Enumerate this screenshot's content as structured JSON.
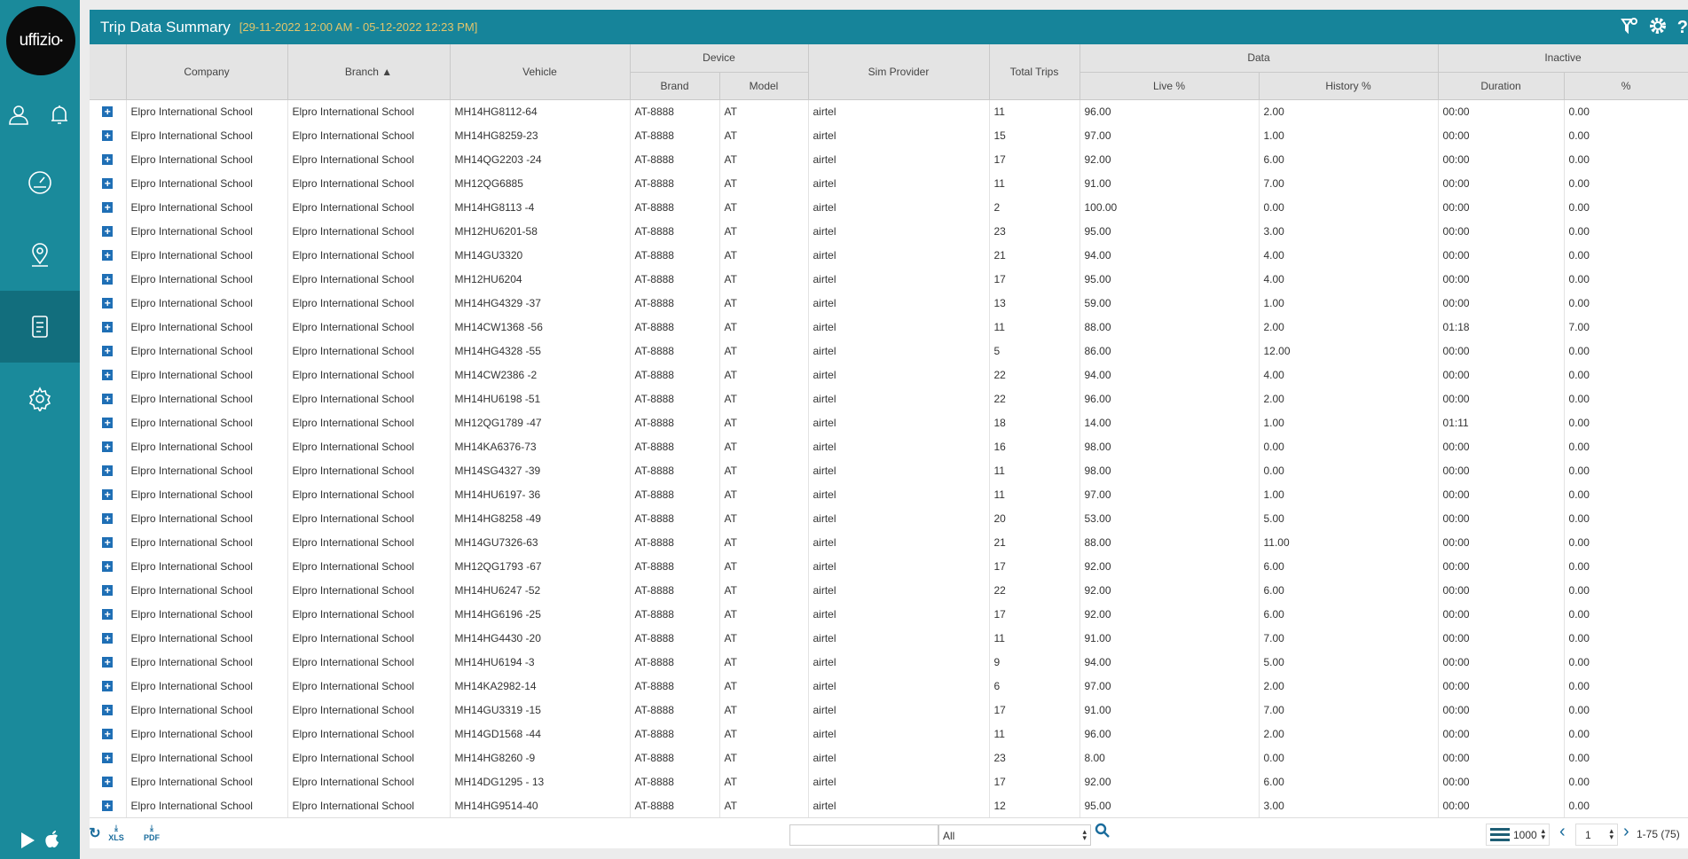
{
  "brand": {
    "logo_text": "uffizio"
  },
  "sidebar": {
    "items": [
      {
        "icon": "user-icon"
      },
      {
        "icon": "bell-icon"
      },
      {
        "icon": "dashboard-icon"
      },
      {
        "icon": "map-pin-icon"
      },
      {
        "icon": "report-icon",
        "active": true
      },
      {
        "icon": "settings-icon"
      },
      {
        "icon": "play-store-icon"
      },
      {
        "icon": "apple-icon"
      }
    ]
  },
  "header": {
    "title": "Trip Data Summary",
    "date_range": "[29-11-2022 12:00 AM - 05-12-2022 12:23 PM]",
    "icons": [
      "filter-icon",
      "gear-icon",
      "help-icon"
    ]
  },
  "table": {
    "groups": {
      "device": "Device",
      "data": "Data",
      "inactive": "Inactive"
    },
    "headers": {
      "company": "Company",
      "branch": "Branch ▲",
      "vehicle": "Vehicle",
      "brand": "Brand",
      "model": "Model",
      "sim": "Sim Provider",
      "trips": "Total Trips",
      "live": "Live %",
      "history": "History %",
      "duration": "Duration",
      "pct": "%"
    },
    "rows": [
      [
        "Elpro International School",
        "Elpro International School",
        "MH14HG8112-64",
        "AT-8888",
        "AT",
        "airtel",
        "11",
        "96.00",
        "2.00",
        "00:00",
        "0.00"
      ],
      [
        "Elpro International School",
        "Elpro International School",
        "MH14HG8259-23",
        "AT-8888",
        "AT",
        "airtel",
        "15",
        "97.00",
        "1.00",
        "00:00",
        "0.00"
      ],
      [
        "Elpro International School",
        "Elpro International School",
        "MH14QG2203 -24",
        "AT-8888",
        "AT",
        "airtel",
        "17",
        "92.00",
        "6.00",
        "00:00",
        "0.00"
      ],
      [
        "Elpro International School",
        "Elpro International School",
        "MH12QG6885",
        "AT-8888",
        "AT",
        "airtel",
        "11",
        "91.00",
        "7.00",
        "00:00",
        "0.00"
      ],
      [
        "Elpro International School",
        "Elpro International School",
        "MH14HG8113 -4",
        "AT-8888",
        "AT",
        "airtel",
        "2",
        "100.00",
        "0.00",
        "00:00",
        "0.00"
      ],
      [
        "Elpro International School",
        "Elpro International School",
        "MH12HU6201-58",
        "AT-8888",
        "AT",
        "airtel",
        "23",
        "95.00",
        "3.00",
        "00:00",
        "0.00"
      ],
      [
        "Elpro International School",
        "Elpro International School",
        "MH14GU3320",
        "AT-8888",
        "AT",
        "airtel",
        "21",
        "94.00",
        "4.00",
        "00:00",
        "0.00"
      ],
      [
        "Elpro International School",
        "Elpro International School",
        "MH12HU6204",
        "AT-8888",
        "AT",
        "airtel",
        "17",
        "95.00",
        "4.00",
        "00:00",
        "0.00"
      ],
      [
        "Elpro International School",
        "Elpro International School",
        "MH14HG4329 -37",
        "AT-8888",
        "AT",
        "airtel",
        "13",
        "59.00",
        "1.00",
        "00:00",
        "0.00"
      ],
      [
        "Elpro International School",
        "Elpro International School",
        "MH14CW1368 -56",
        "AT-8888",
        "AT",
        "airtel",
        "11",
        "88.00",
        "2.00",
        "01:18",
        "7.00"
      ],
      [
        "Elpro International School",
        "Elpro International School",
        "MH14HG4328 -55",
        "AT-8888",
        "AT",
        "airtel",
        "5",
        "86.00",
        "12.00",
        "00:00",
        "0.00"
      ],
      [
        "Elpro International School",
        "Elpro International School",
        "MH14CW2386 -2",
        "AT-8888",
        "AT",
        "airtel",
        "22",
        "94.00",
        "4.00",
        "00:00",
        "0.00"
      ],
      [
        "Elpro International School",
        "Elpro International School",
        "MH14HU6198 -51",
        "AT-8888",
        "AT",
        "airtel",
        "22",
        "96.00",
        "2.00",
        "00:00",
        "0.00"
      ],
      [
        "Elpro International School",
        "Elpro International School",
        "MH12QG1789 -47",
        "AT-8888",
        "AT",
        "airtel",
        "18",
        "14.00",
        "1.00",
        "01:11",
        "0.00"
      ],
      [
        "Elpro International School",
        "Elpro International School",
        "MH14KA6376-73",
        "AT-8888",
        "AT",
        "airtel",
        "16",
        "98.00",
        "0.00",
        "00:00",
        "0.00"
      ],
      [
        "Elpro International School",
        "Elpro International School",
        "MH14SG4327 -39",
        "AT-8888",
        "AT",
        "airtel",
        "11",
        "98.00",
        "0.00",
        "00:00",
        "0.00"
      ],
      [
        "Elpro International School",
        "Elpro International School",
        "MH14HU6197- 36",
        "AT-8888",
        "AT",
        "airtel",
        "11",
        "97.00",
        "1.00",
        "00:00",
        "0.00"
      ],
      [
        "Elpro International School",
        "Elpro International School",
        "MH14HG8258 -49",
        "AT-8888",
        "AT",
        "airtel",
        "20",
        "53.00",
        "5.00",
        "00:00",
        "0.00"
      ],
      [
        "Elpro International School",
        "Elpro International School",
        "MH14GU7326-63",
        "AT-8888",
        "AT",
        "airtel",
        "21",
        "88.00",
        "11.00",
        "00:00",
        "0.00"
      ],
      [
        "Elpro International School",
        "Elpro International School",
        "MH12QG1793 -67",
        "AT-8888",
        "AT",
        "airtel",
        "17",
        "92.00",
        "6.00",
        "00:00",
        "0.00"
      ],
      [
        "Elpro International School",
        "Elpro International School",
        "MH14HU6247 -52",
        "AT-8888",
        "AT",
        "airtel",
        "22",
        "92.00",
        "6.00",
        "00:00",
        "0.00"
      ],
      [
        "Elpro International School",
        "Elpro International School",
        "MH14HG6196 -25",
        "AT-8888",
        "AT",
        "airtel",
        "17",
        "92.00",
        "6.00",
        "00:00",
        "0.00"
      ],
      [
        "Elpro International School",
        "Elpro International School",
        "MH14HG4430 -20",
        "AT-8888",
        "AT",
        "airtel",
        "11",
        "91.00",
        "7.00",
        "00:00",
        "0.00"
      ],
      [
        "Elpro International School",
        "Elpro International School",
        "MH14HU6194 -3",
        "AT-8888",
        "AT",
        "airtel",
        "9",
        "94.00",
        "5.00",
        "00:00",
        "0.00"
      ],
      [
        "Elpro International School",
        "Elpro International School",
        "MH14KA2982-14",
        "AT-8888",
        "AT",
        "airtel",
        "6",
        "97.00",
        "2.00",
        "00:00",
        "0.00"
      ],
      [
        "Elpro International School",
        "Elpro International School",
        "MH14GU3319 -15",
        "AT-8888",
        "AT",
        "airtel",
        "17",
        "91.00",
        "7.00",
        "00:00",
        "0.00"
      ],
      [
        "Elpro International School",
        "Elpro International School",
        "MH14GD1568 -44",
        "AT-8888",
        "AT",
        "airtel",
        "11",
        "96.00",
        "2.00",
        "00:00",
        "0.00"
      ],
      [
        "Elpro International School",
        "Elpro International School",
        "MH14HG8260 -9",
        "AT-8888",
        "AT",
        "airtel",
        "23",
        "8.00",
        "0.00",
        "00:00",
        "0.00"
      ],
      [
        "Elpro International School",
        "Elpro International School",
        "MH14DG1295 - 13",
        "AT-8888",
        "AT",
        "airtel",
        "17",
        "92.00",
        "6.00",
        "00:00",
        "0.00"
      ],
      [
        "Elpro International School",
        "Elpro International School",
        "MH14HG9514-40",
        "AT-8888",
        "AT",
        "airtel",
        "12",
        "95.00",
        "3.00",
        "00:00",
        "0.00"
      ]
    ]
  },
  "footer": {
    "xls_label": "XLS",
    "pdf_label": "PDF",
    "search_value": "",
    "filter_value": "All",
    "page_size": "1000",
    "page": "1",
    "range": "1-75 (75)"
  },
  "colors": {
    "primary": "#16849a",
    "sidebar": "#1a8a9b",
    "date_range": "#e2c56b",
    "expand": "#1f6fb5"
  }
}
